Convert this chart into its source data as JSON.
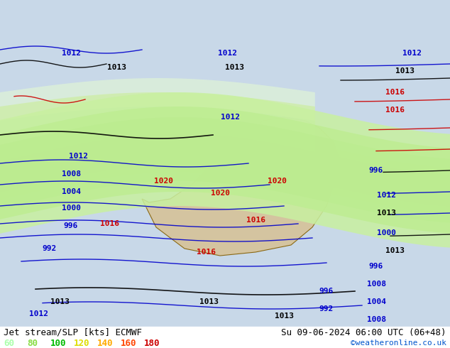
{
  "title_left": "Jet stream/SLP [kts] ECMWF",
  "title_right": "Su 09-06-2024 06:00 UTC (06+48)",
  "credit": "©weatheronline.co.uk",
  "legend_values": [
    60,
    80,
    100,
    120,
    140,
    160,
    180
  ],
  "legend_colors": [
    "#aaffaa",
    "#88dd44",
    "#00bb00",
    "#dddd00",
    "#ffaa00",
    "#ff4400",
    "#cc0000"
  ],
  "bg_color": "#d0e8f8",
  "map_bg": "#e8e8e8",
  "fig_width": 6.34,
  "fig_height": 4.9,
  "dpi": 100
}
